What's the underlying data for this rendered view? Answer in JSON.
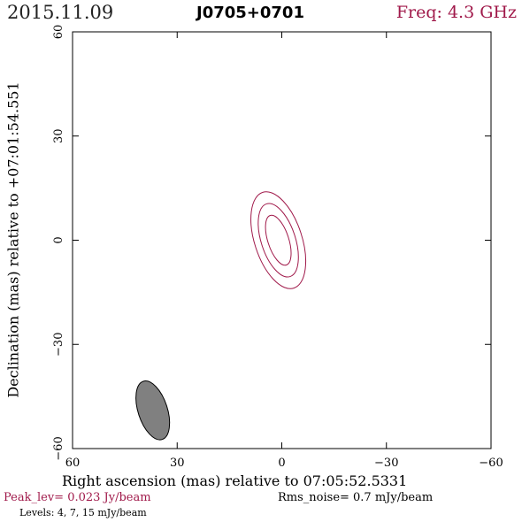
{
  "header": {
    "date": "2015.11.09",
    "source": "J0705+0701",
    "freq": "Freq: 4.3 GHz"
  },
  "footer": {
    "peak": "Peak_lev=  0.023 Jy/beam",
    "rms": "Rms_noise=   0.7 mJy/beam",
    "levels": "Levels:   4,   7,  15 mJy/beam"
  },
  "chart_data": {
    "type": "contour",
    "xlabel": "Right ascension (mas) relative to 07:05:52.5331",
    "ylabel": "Declination (mas) relative to +07:01:54.551",
    "xlim": [
      60,
      -60
    ],
    "ylim": [
      -60,
      60
    ],
    "xticks": [
      "60",
      "30",
      "0",
      "−30",
      "−60"
    ],
    "yticks": [
      "−60",
      "−30",
      "0",
      "30",
      "60"
    ],
    "xtick_values": [
      60,
      30,
      0,
      -30,
      -60
    ],
    "ytick_values": [
      -60,
      -30,
      0,
      30,
      60
    ],
    "contours": [
      {
        "level_mJy": 4,
        "center": [
          1,
          0
        ],
        "a": 14.5,
        "b": 6.8,
        "pa_deg": 18
      },
      {
        "level_mJy": 7,
        "center": [
          1,
          0
        ],
        "a": 11.0,
        "b": 4.9,
        "pa_deg": 18
      },
      {
        "level_mJy": 15,
        "center": [
          1,
          0
        ],
        "a": 7.5,
        "b": 3.0,
        "pa_deg": 18
      }
    ],
    "beam": {
      "center": [
        37,
        -49
      ],
      "a": 8.8,
      "b": 4.2,
      "pa_deg": 18
    },
    "colors": {
      "contour": "#a0194a",
      "beam_fill": "#808080",
      "axis": "#000000"
    }
  }
}
